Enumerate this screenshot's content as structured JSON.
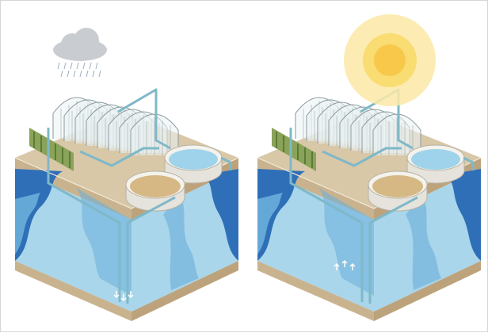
{
  "figure": {
    "panels": [
      {
        "weather": "rain",
        "weather_icon": "rain-cloud-icon",
        "flow_marker": "down-arrows-icon"
      },
      {
        "weather": "sun",
        "weather_icon": "sun-icon",
        "flow_marker": "up-arrows-icon"
      }
    ],
    "colors": {
      "soil_top": "#d8c8a8",
      "soil_left": "#c9b38f",
      "soil_right": "#bda37c",
      "water_light": "#a9d6ea",
      "water_mid": "#6aaedb",
      "water_deep": "#2f6fb8",
      "pipe": "#7fb8c8",
      "tank_clear": "#9fd3ec",
      "tank_sediment": "#d5b884",
      "greenhouse_stroke": "#8a9a9e",
      "crop": "#8aa35a",
      "sun_inner": "#f7c84a",
      "sun_outer": "#fbe9a6",
      "cloud": "#c9ccd0"
    }
  }
}
